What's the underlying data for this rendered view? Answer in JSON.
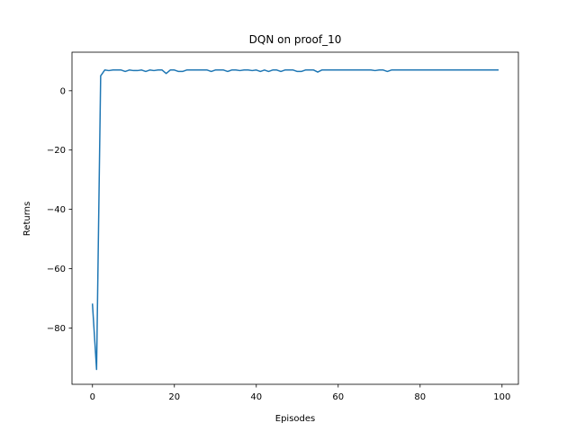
{
  "chart_data": {
    "type": "line",
    "title": "DQN on proof_10",
    "xlabel": "Episodes",
    "ylabel": "Returns",
    "xlim": [
      -5,
      104
    ],
    "ylim": [
      -99,
      13
    ],
    "xticks": [
      0,
      20,
      40,
      60,
      80,
      100
    ],
    "yticks": [
      -80,
      -60,
      -40,
      -20,
      0
    ],
    "xtick_labels": [
      "0",
      "20",
      "40",
      "60",
      "80",
      "100"
    ],
    "ytick_labels": [
      "−80",
      "−60",
      "−40",
      "−20",
      "0"
    ],
    "grid": false,
    "color": "#1f77b4",
    "series": [
      {
        "x": [
          0,
          1,
          2,
          3,
          4,
          5,
          6,
          7,
          8,
          9,
          10,
          11,
          12,
          13,
          14,
          15,
          16,
          17,
          18,
          19,
          20,
          21,
          22,
          23,
          24,
          25,
          26,
          27,
          28,
          29,
          30,
          31,
          32,
          33,
          34,
          35,
          36,
          37,
          38,
          39,
          40,
          41,
          42,
          43,
          44,
          45,
          46,
          47,
          48,
          49,
          50,
          51,
          52,
          53,
          54,
          55,
          56,
          57,
          58,
          59,
          60,
          61,
          62,
          63,
          64,
          65,
          66,
          67,
          68,
          69,
          70,
          71,
          72,
          73,
          74,
          75,
          76,
          77,
          78,
          79,
          80,
          81,
          82,
          83,
          84,
          85,
          86,
          87,
          88,
          89,
          90,
          91,
          92,
          93,
          94,
          95,
          96,
          97,
          98,
          99
        ],
        "values": [
          -72,
          -94,
          5,
          7,
          6.8,
          7,
          7,
          7,
          6.5,
          7,
          6.8,
          6.8,
          7,
          6.5,
          7,
          6.8,
          7,
          7,
          5.8,
          7,
          7,
          6.5,
          6.5,
          7,
          7,
          7,
          7,
          7,
          7,
          6.5,
          7,
          7,
          7,
          6.5,
          7,
          7,
          6.8,
          7,
          7,
          6.8,
          7,
          6.5,
          7,
          6.5,
          7,
          7,
          6.5,
          7,
          7,
          7,
          6.5,
          6.5,
          7,
          7,
          7,
          6.3,
          7,
          7,
          7,
          7,
          7,
          7,
          7,
          7,
          7,
          7,
          7,
          7,
          7,
          6.8,
          7,
          7,
          6.5,
          7,
          7,
          7,
          7,
          7,
          7,
          7,
          7,
          7,
          7,
          7,
          7,
          7,
          7,
          7,
          7,
          7,
          7,
          7,
          7,
          7,
          7,
          7,
          7,
          7,
          7,
          7
        ]
      }
    ]
  }
}
